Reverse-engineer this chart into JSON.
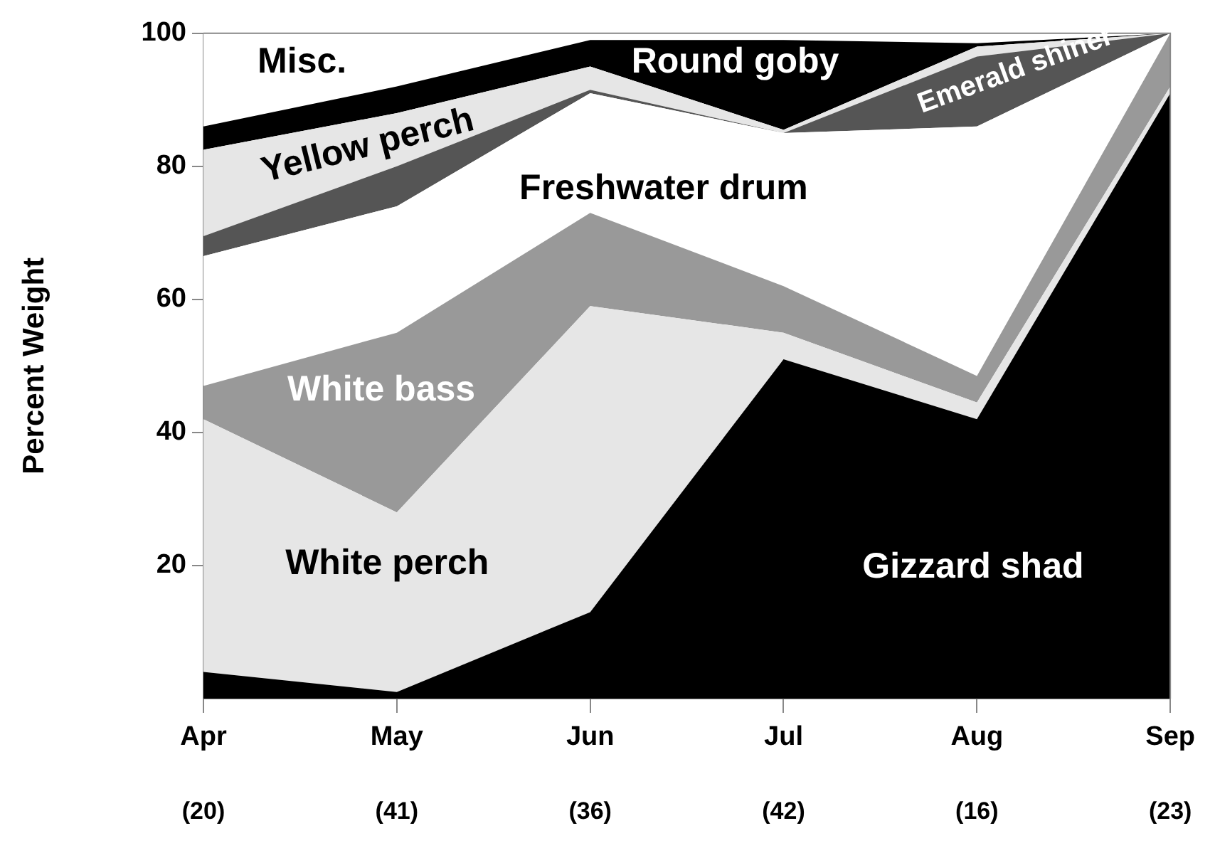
{
  "chart_data": {
    "type": "area",
    "stacked": true,
    "ylabel": "Percent Weight",
    "categories": [
      "Apr",
      "May",
      "Jun",
      "Jul",
      "Aug",
      "Sep"
    ],
    "series": [
      {
        "name": "Gizzard shad",
        "color": "#000000",
        "values": [
          4,
          1,
          13,
          51,
          42,
          91
        ]
      },
      {
        "name": "White perch",
        "color": "#e6e6e6",
        "values": [
          38,
          27,
          46,
          4,
          2.5,
          1
        ]
      },
      {
        "name": "White bass",
        "color": "#999999",
        "values": [
          5,
          27,
          14,
          7,
          4,
          8
        ]
      },
      {
        "name": "Freshwater drum",
        "color": "#ffffff",
        "values": [
          19.5,
          19,
          18,
          23,
          37.5,
          0
        ]
      },
      {
        "name": "Emerald shiner",
        "color": "#555555",
        "values": [
          3,
          6,
          0.5,
          0,
          10.5,
          0
        ]
      },
      {
        "name": "Yellow perch",
        "color": "#e6e6e6",
        "values": [
          13,
          8,
          3.5,
          0.5,
          1.5,
          0
        ]
      },
      {
        "name": "Round goby",
        "color": "#000000",
        "values": [
          3.5,
          4,
          4,
          13.5,
          0.5,
          0
        ]
      },
      {
        "name": "Misc.",
        "color": "#ffffff",
        "values": [
          14,
          8,
          1,
          1,
          1.5,
          0
        ]
      }
    ],
    "ylim": [
      0,
      100
    ],
    "yticks": [
      20,
      40,
      60,
      80,
      100
    ],
    "legend": false,
    "annotations": [
      "(20)",
      "(41)",
      "(36)",
      "(42)",
      "(16)",
      "(23)"
    ]
  }
}
